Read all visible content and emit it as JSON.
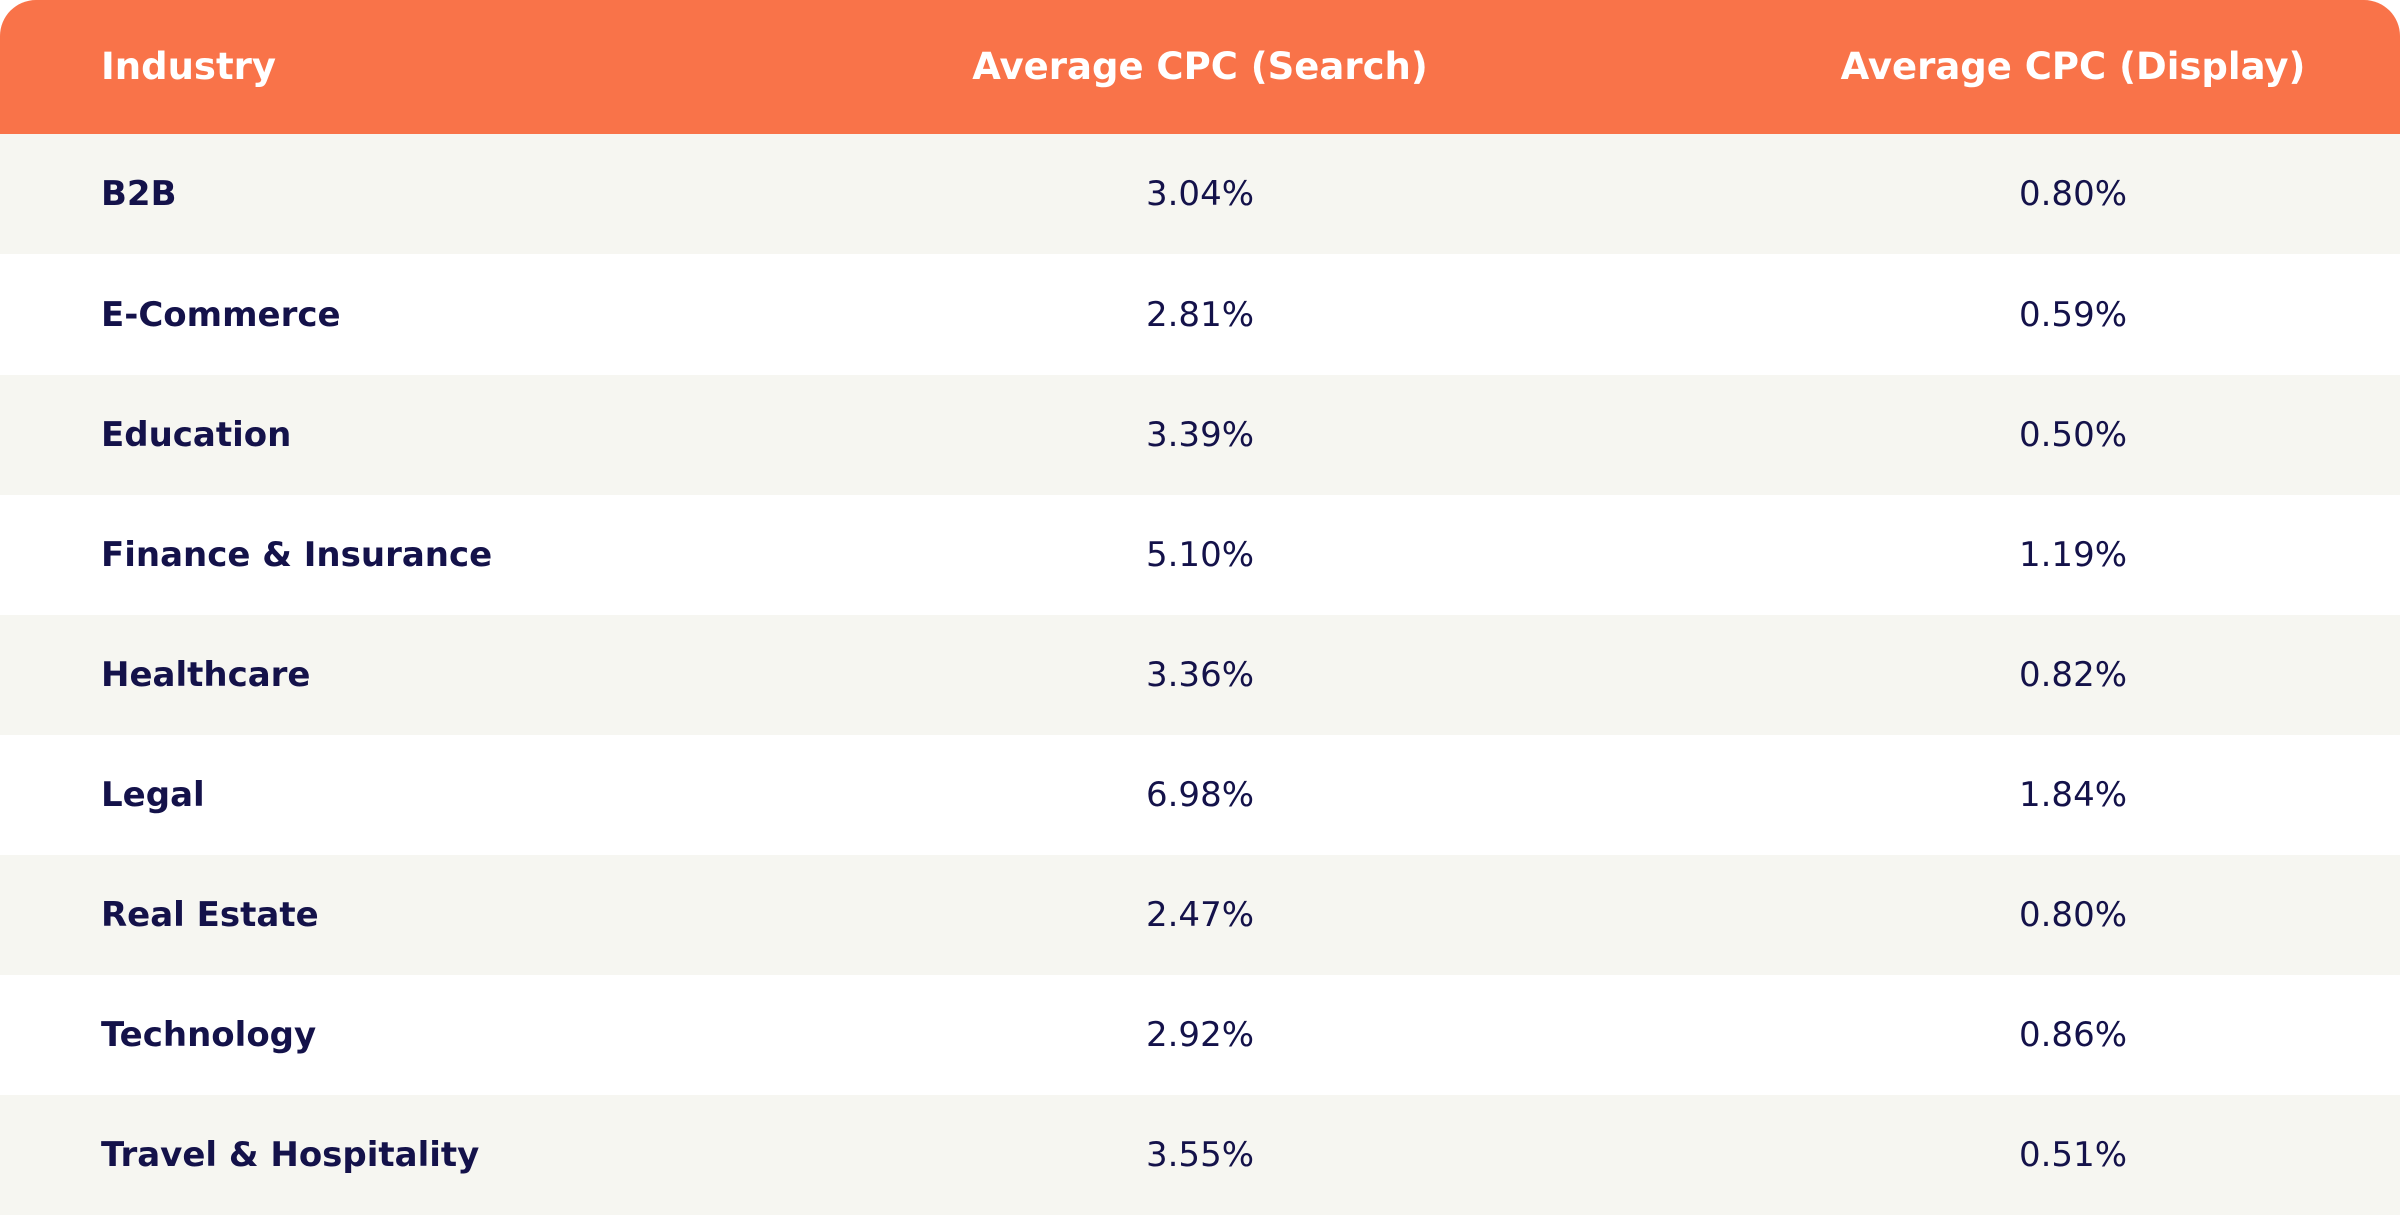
{
  "colors": {
    "header_bg": "#F97349",
    "header_text": "#FFFFFF",
    "row_alt_bg": "#F6F6F1",
    "row_bg": "#FFFFFF",
    "body_text": "#14124A"
  },
  "chart_data": {
    "type": "table",
    "columns": [
      "Industry",
      "Average CPC (Search)",
      "Average CPC (Display)"
    ],
    "rows": [
      [
        "B2B",
        "3.04%",
        "0.80%"
      ],
      [
        "E-Commerce",
        "2.81%",
        "0.59%"
      ],
      [
        "Education",
        "3.39%",
        "0.50%"
      ],
      [
        "Finance & Insurance",
        "5.10%",
        "1.19%"
      ],
      [
        "Healthcare",
        "3.36%",
        "0.82%"
      ],
      [
        "Legal",
        "6.98%",
        "1.84%"
      ],
      [
        "Real Estate",
        "2.47%",
        "0.80%"
      ],
      [
        "Technology",
        "2.92%",
        "0.86%"
      ],
      [
        "Travel & Hospitality",
        "3.55%",
        "0.51%"
      ]
    ]
  }
}
